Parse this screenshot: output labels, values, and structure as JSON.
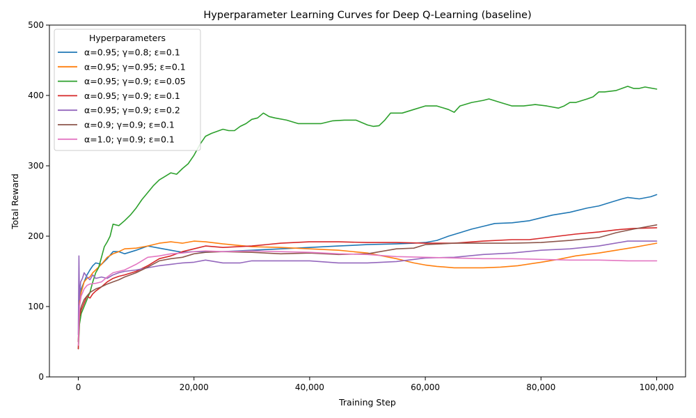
{
  "chart_data": {
    "type": "line",
    "title": "Hyperparameter Learning Curves for Deep Q-Learning (baseline)",
    "xlabel": "Training Step",
    "ylabel": "Total Reward",
    "xlim": [
      -5000,
      105000
    ],
    "ylim": [
      0,
      500
    ],
    "x_ticks": [
      0,
      20000,
      40000,
      60000,
      80000,
      100000
    ],
    "x_tick_labels": [
      "0",
      "20,000",
      "40,000",
      "60,000",
      "80,000",
      "100,000"
    ],
    "y_ticks": [
      0,
      100,
      200,
      300,
      400,
      500
    ],
    "y_tick_labels": [
      "0",
      "100",
      "200",
      "300",
      "400",
      "500"
    ],
    "grid": false,
    "legend": {
      "title": "Hyperparameters",
      "placement": "top-left"
    },
    "series": [
      {
        "name": "α=0.95; γ=0.8; ε=0.1",
        "color": "#1f77b4",
        "x": [
          0,
          200,
          500,
          1000,
          1500,
          2000,
          2500,
          3000,
          4000,
          5000,
          6000,
          7000,
          8000,
          10000,
          12000,
          14000,
          16000,
          18000,
          20000,
          25000,
          30000,
          35000,
          40000,
          45000,
          50000,
          55000,
          58000,
          60000,
          62000,
          64000,
          66000,
          68000,
          70000,
          72000,
          75000,
          78000,
          80000,
          82000,
          85000,
          88000,
          90000,
          92000,
          94000,
          95000,
          97000,
          99000,
          100000
        ],
        "y": [
          50,
          110,
          125,
          135,
          145,
          152,
          158,
          162,
          160,
          168,
          178,
          178,
          175,
          180,
          186,
          183,
          180,
          177,
          178,
          178,
          180,
          182,
          184,
          186,
          188,
          189,
          190,
          191,
          194,
          200,
          205,
          210,
          214,
          218,
          219,
          222,
          226,
          230,
          234,
          240,
          243,
          248,
          253,
          255,
          253,
          256,
          259
        ]
      },
      {
        "name": "α=0.95; γ=0.95; ε=0.1",
        "color": "#ff7f0e",
        "x": [
          0,
          200,
          500,
          1000,
          1500,
          2000,
          2500,
          3000,
          4000,
          5000,
          6000,
          7000,
          8000,
          10000,
          12000,
          14000,
          16000,
          18000,
          20000,
          22000,
          25000,
          30000,
          35000,
          40000,
          45000,
          50000,
          55000,
          58000,
          60000,
          62000,
          65000,
          68000,
          70000,
          73000,
          76000,
          80000,
          83000,
          86000,
          90000,
          93000,
          96000,
          98000,
          100000
        ],
        "y": [
          50,
          105,
          120,
          135,
          140,
          142,
          148,
          152,
          160,
          170,
          175,
          178,
          182,
          183,
          186,
          190,
          192,
          190,
          193,
          192,
          189,
          185,
          184,
          182,
          180,
          176,
          168,
          162,
          159,
          157,
          155,
          155,
          155,
          156,
          158,
          163,
          167,
          172,
          176,
          180,
          184,
          187,
          190
        ]
      },
      {
        "name": "α=0.95; γ=0.9; ε=0.05",
        "color": "#2ca02c",
        "x": [
          0,
          200,
          500,
          1000,
          1500,
          2000,
          2500,
          3000,
          3500,
          4000,
          4500,
          5000,
          5500,
          6000,
          7000,
          8000,
          9000,
          10000,
          11000,
          12000,
          13000,
          14000,
          15000,
          16000,
          17000,
          18000,
          19000,
          20000,
          21000,
          22000,
          23000,
          24000,
          25000,
          26000,
          27000,
          28000,
          29000,
          30000,
          31000,
          32000,
          33000,
          34000,
          36000,
          38000,
          40000,
          42000,
          44000,
          46000,
          48000,
          50000,
          51000,
          52000,
          53000,
          54000,
          56000,
          58000,
          60000,
          62000,
          64000,
          65000,
          66000,
          68000,
          70000,
          71000,
          73000,
          75000,
          77000,
          79000,
          81000,
          83000,
          84000,
          85000,
          86000,
          88000,
          89000,
          90000,
          91000,
          93000,
          94000,
          95000,
          96000,
          97000,
          98000,
          100000
        ],
        "y": [
          40,
          75,
          90,
          100,
          110,
          120,
          135,
          148,
          155,
          170,
          185,
          192,
          200,
          217,
          215,
          222,
          230,
          240,
          252,
          262,
          272,
          280,
          285,
          290,
          288,
          296,
          303,
          315,
          330,
          342,
          346,
          349,
          352,
          350,
          350,
          356,
          360,
          366,
          368,
          375,
          370,
          368,
          365,
          360,
          360,
          360,
          364,
          365,
          365,
          358,
          356,
          357,
          365,
          375,
          375,
          380,
          385,
          385,
          380,
          376,
          385,
          390,
          393,
          395,
          390,
          385,
          385,
          387,
          385,
          382,
          385,
          390,
          390,
          395,
          398,
          405,
          405,
          407,
          410,
          413,
          410,
          410,
          412,
          409
        ]
      },
      {
        "name": "α=0.95; γ=0.9; ε=0.1",
        "color": "#d62728",
        "x": [
          0,
          200,
          500,
          1000,
          1500,
          2000,
          2500,
          3000,
          4000,
          5000,
          6000,
          7000,
          8000,
          10000,
          12000,
          14000,
          16000,
          18000,
          20000,
          22000,
          25000,
          30000,
          35000,
          40000,
          45000,
          50000,
          55000,
          60000,
          65000,
          70000,
          75000,
          78000,
          80000,
          83000,
          86000,
          90000,
          93000,
          96000,
          100000
        ],
        "y": [
          40,
          85,
          95,
          105,
          115,
          112,
          118,
          122,
          128,
          135,
          140,
          143,
          145,
          150,
          158,
          168,
          172,
          178,
          182,
          186,
          184,
          186,
          190,
          192,
          192,
          191,
          191,
          190,
          190,
          193,
          195,
          195,
          197,
          200,
          203,
          206,
          209,
          211,
          212
        ]
      },
      {
        "name": "α=0.95; γ=0.9; ε=0.2",
        "color": "#9467bd",
        "x": [
          0,
          100,
          200,
          400,
          700,
          1000,
          1500,
          2000,
          2500,
          3000,
          4000,
          5000,
          6000,
          7000,
          8000,
          10000,
          12000,
          14000,
          16000,
          18000,
          20000,
          22000,
          25000,
          28000,
          30000,
          35000,
          40000,
          45000,
          50000,
          55000,
          60000,
          65000,
          70000,
          75000,
          80000,
          85000,
          90000,
          95000,
          100000
        ],
        "y": [
          60,
          172,
          110,
          135,
          140,
          148,
          142,
          138,
          145,
          140,
          142,
          140,
          145,
          148,
          150,
          152,
          155,
          158,
          160,
          162,
          163,
          166,
          162,
          162,
          165,
          165,
          165,
          162,
          162,
          164,
          169,
          170,
          174,
          176,
          180,
          182,
          186,
          193,
          193
        ]
      },
      {
        "name": "α=0.9; γ=0.9; ε=0.1",
        "color": "#8c564b",
        "x": [
          0,
          200,
          500,
          1000,
          1500,
          2000,
          3000,
          4000,
          5000,
          6000,
          7000,
          8000,
          10000,
          12000,
          14000,
          16000,
          18000,
          20000,
          22000,
          25000,
          30000,
          35000,
          40000,
          45000,
          50000,
          55000,
          58000,
          60000,
          65000,
          70000,
          75000,
          80000,
          85000,
          90000,
          93000,
          96000,
          100000
        ],
        "y": [
          50,
          90,
          100,
          110,
          115,
          120,
          125,
          128,
          132,
          135,
          138,
          142,
          148,
          156,
          165,
          168,
          170,
          175,
          177,
          178,
          177,
          175,
          176,
          174,
          175,
          182,
          183,
          188,
          190,
          190,
          190,
          191,
          194,
          198,
          205,
          210,
          216
        ]
      },
      {
        "name": "α=1.0; γ=0.9; ε=0.1",
        "color": "#e377c2",
        "x": [
          0,
          200,
          500,
          1000,
          1500,
          2000,
          3000,
          4000,
          5000,
          6000,
          7000,
          8000,
          10000,
          12000,
          14000,
          16000,
          18000,
          20000,
          22000,
          25000,
          30000,
          35000,
          40000,
          45000,
          50000,
          55000,
          60000,
          65000,
          70000,
          75000,
          80000,
          85000,
          90000,
          95000,
          100000
        ],
        "y": [
          45,
          100,
          115,
          125,
          130,
          132,
          133,
          135,
          142,
          148,
          150,
          152,
          160,
          170,
          172,
          175,
          176,
          178,
          179,
          178,
          179,
          178,
          177,
          175,
          174,
          171,
          170,
          169,
          168,
          168,
          167,
          166,
          166,
          165,
          165
        ]
      }
    ]
  }
}
